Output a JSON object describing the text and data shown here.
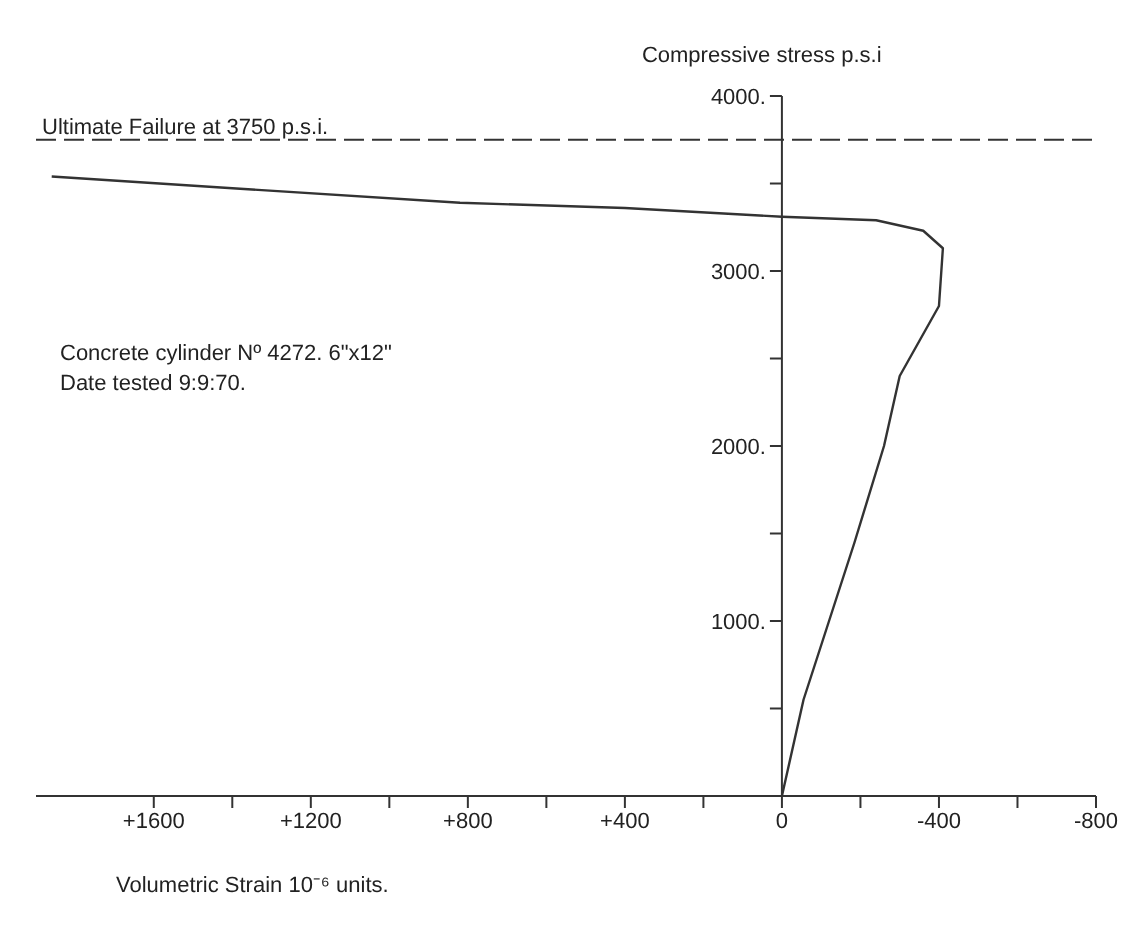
{
  "chart_data": {
    "type": "line",
    "xlabel": "Volumetric Strain 10⁻⁶ units.",
    "ylabel": "Compressive stress p.s.i",
    "annotations": [
      "Concrete cylinder Nº 4272. 6\"x12\"",
      "Date tested 9:9:70."
    ],
    "x": [
      1860,
      1380,
      820,
      400,
      0,
      -240,
      -360,
      -410,
      -400,
      -300,
      -260,
      -185,
      -120,
      -55,
      0
    ],
    "series": [
      {
        "color": "#333333",
        "values": [
          3540,
          3470,
          3390,
          3360,
          3310,
          3290,
          3230,
          3130,
          2800,
          2400,
          2000,
          1450,
          1000,
          550,
          0
        ]
      }
    ],
    "xlim": [
      1900,
      -800
    ],
    "xticks": [
      {
        "value": 1600,
        "label": "+1600"
      },
      {
        "value": 1400,
        "label": null
      },
      {
        "value": 1200,
        "label": "+1200"
      },
      {
        "value": 1000,
        "label": null
      },
      {
        "value": 800,
        "label": "+800"
      },
      {
        "value": 600,
        "label": null
      },
      {
        "value": 400,
        "label": "+400"
      },
      {
        "value": 200,
        "label": null
      },
      0,
      {
        "value": -200,
        "label": null
      },
      -400,
      {
        "value": -600,
        "label": null
      },
      -800
    ],
    "ylim": [
      0,
      4000
    ],
    "yticks": [
      {
        "value": 500,
        "label": null
      },
      {
        "value": 1000,
        "label": "1000."
      },
      {
        "value": 1500,
        "label": null
      },
      {
        "value": 2000,
        "label": "2000."
      },
      {
        "value": 2500,
        "label": null
      },
      {
        "value": 3000,
        "label": "3000."
      },
      {
        "value": 3500,
        "label": null
      },
      {
        "value": 4000,
        "label": "4000."
      }
    ],
    "ref_lines": [
      {
        "axis": "y",
        "value": 3750,
        "label": "Ultimate Failure at 3750 p.s.i.",
        "color": "#333333",
        "line_style": "dashed"
      }
    ],
    "grid": false,
    "legend": false,
    "marker": "none",
    "line_style": "solid"
  }
}
